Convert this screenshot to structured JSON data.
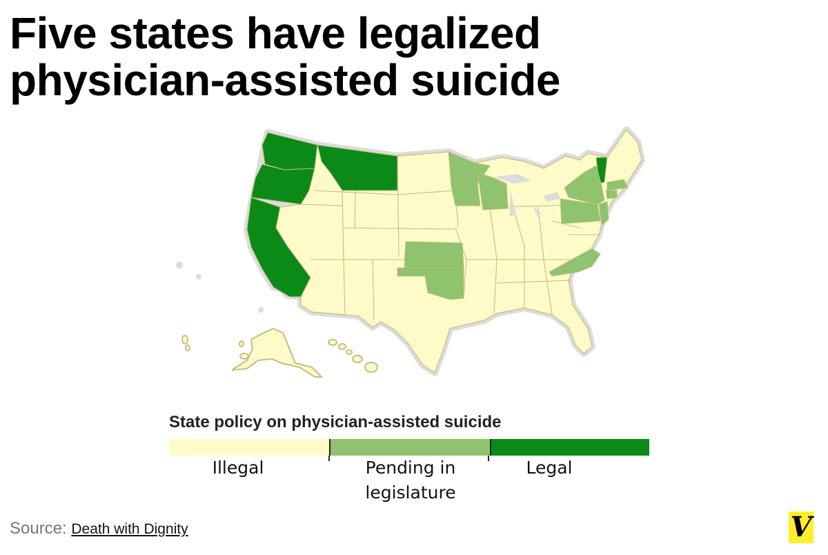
{
  "title": "Five states have legalized physician-assisted suicide",
  "legend": {
    "title": "State policy on physician-assisted suicide",
    "categories": [
      {
        "label": "Illegal",
        "color": "#fffbc8"
      },
      {
        "label": "Pending in legislature",
        "color": "#8fc36d"
      },
      {
        "label": "Legal",
        "color": "#0b8a17"
      }
    ]
  },
  "source": {
    "prefix": "Source:",
    "link_text": "Death with Dignity"
  },
  "colors": {
    "illegal": "#fffbc8",
    "pending": "#8fc36d",
    "legal": "#0b8a17",
    "border": "#c2bd84",
    "halo": "#dcdcdc",
    "logo_bg": "#ffef2a"
  },
  "states": {
    "legal": [
      "Washington",
      "Oregon",
      "California",
      "Montana",
      "Vermont"
    ],
    "pending": [
      "Minnesota",
      "Wisconsin",
      "Kansas",
      "Oklahoma",
      "New York",
      "Pennsylvania",
      "New Jersey",
      "Massachusetts",
      "Connecticut",
      "North Carolina"
    ]
  },
  "logo": {
    "icon": "vox-v-icon"
  }
}
